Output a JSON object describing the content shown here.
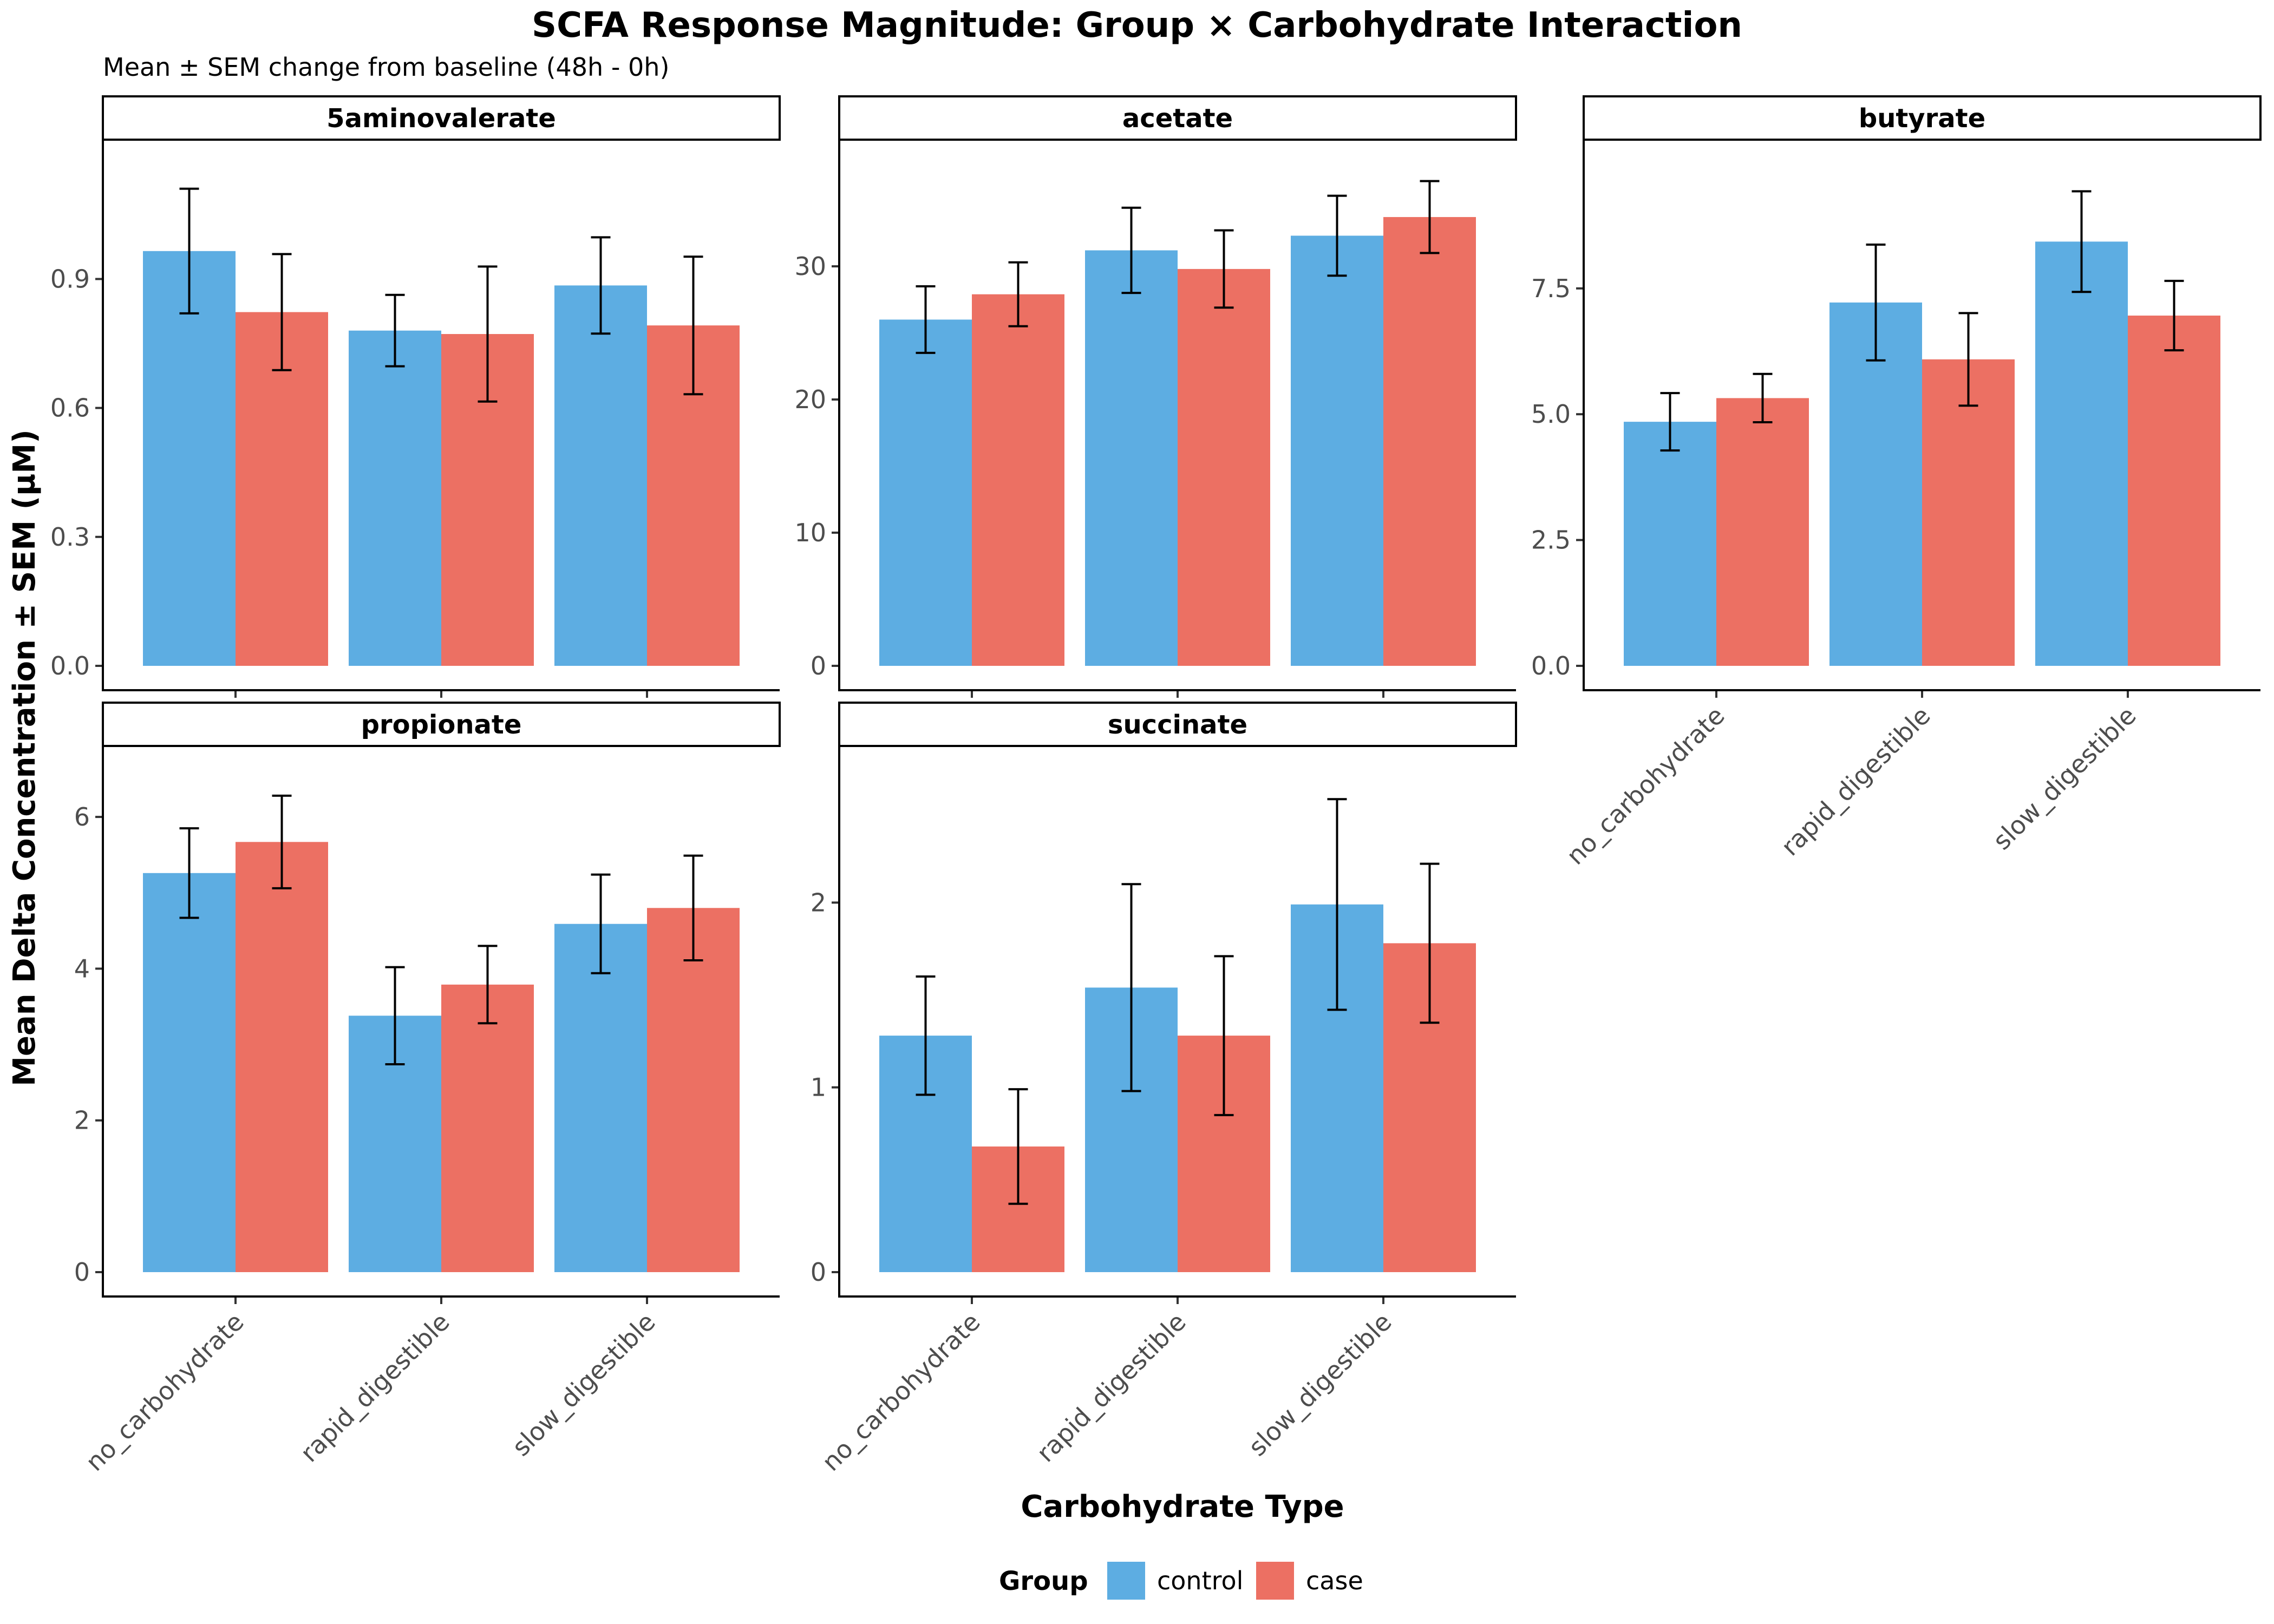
{
  "chart_data": {
    "type": "bar",
    "title": "SCFA Response Magnitude: Group × Carbohydrate Interaction",
    "subtitle": "Mean ± SEM change from baseline (48h - 0h)",
    "xlabel": "Carbohydrate Type",
    "ylabel": "Mean Delta Concentration ± SEM (µM)",
    "categories": [
      "no_carbohydrate",
      "rapid_digestible",
      "slow_digestible"
    ],
    "legend": {
      "title": "Group",
      "position": "bottom",
      "entries": [
        {
          "name": "control",
          "color": "#5dade2"
        },
        {
          "name": "case",
          "color": "#ec7063"
        }
      ]
    },
    "grid": false,
    "panels": [
      {
        "name": "5aminovalerate",
        "ylim": [
          0,
          1.165
        ],
        "yticks": [
          {
            "value": 0,
            "label": "0.0"
          },
          {
            "value": 0.3,
            "label": "0.3"
          },
          {
            "value": 0.6,
            "label": "0.6"
          },
          {
            "value": 0.9,
            "label": "0.9"
          }
        ],
        "series": [
          {
            "name": "control",
            "values": [
              0.965,
              0.78,
              0.885
            ],
            "sem": [
              0.145,
              0.083,
              0.112
            ]
          },
          {
            "name": "case",
            "values": [
              0.823,
              0.772,
              0.792
            ],
            "sem": [
              0.135,
              0.157,
              0.16
            ]
          }
        ]
      },
      {
        "name": "acetate",
        "ylim": [
          0,
          37.6
        ],
        "yticks": [
          {
            "value": 0,
            "label": "0"
          },
          {
            "value": 10,
            "label": "10"
          },
          {
            "value": 20,
            "label": "20"
          },
          {
            "value": 30,
            "label": "30"
          }
        ],
        "series": [
          {
            "name": "control",
            "values": [
              26.0,
              31.2,
              32.3
            ],
            "sem": [
              2.5,
              3.2,
              3.0
            ]
          },
          {
            "name": "case",
            "values": [
              27.9,
              29.8,
              33.7
            ],
            "sem": [
              2.4,
              2.9,
              2.7
            ]
          }
        ]
      },
      {
        "name": "butyrate",
        "ylim": [
          0,
          9.95
        ],
        "yticks": [
          {
            "value": 0,
            "label": "0.0"
          },
          {
            "value": 2.5,
            "label": "2.5"
          },
          {
            "value": 5,
            "label": "5.0"
          },
          {
            "value": 7.5,
            "label": "7.5"
          }
        ],
        "series": [
          {
            "name": "control",
            "values": [
              4.85,
              7.22,
              8.43
            ],
            "sem": [
              0.57,
              1.15,
              1.0
            ]
          },
          {
            "name": "case",
            "values": [
              5.32,
              6.09,
              6.96
            ],
            "sem": [
              0.48,
              0.92,
              0.69
            ]
          }
        ]
      },
      {
        "name": "propionate",
        "ylim": [
          0,
          6.6
        ],
        "yticks": [
          {
            "value": 0,
            "label": "0"
          },
          {
            "value": 2,
            "label": "2"
          },
          {
            "value": 4,
            "label": "4"
          },
          {
            "value": 6,
            "label": "6"
          }
        ],
        "series": [
          {
            "name": "control",
            "values": [
              5.26,
              3.38,
              4.59
            ],
            "sem": [
              0.59,
              0.64,
              0.65
            ]
          },
          {
            "name": "case",
            "values": [
              5.67,
              3.79,
              4.8
            ],
            "sem": [
              0.61,
              0.51,
              0.69
            ]
          }
        ]
      },
      {
        "name": "succinate",
        "ylim": [
          0,
          2.71
        ],
        "yticks": [
          {
            "value": 0,
            "label": "0"
          },
          {
            "value": 1,
            "label": "1"
          },
          {
            "value": 2,
            "label": "2"
          }
        ],
        "series": [
          {
            "name": "control",
            "values": [
              1.28,
              1.54,
              1.99
            ],
            "sem": [
              0.32,
              0.56,
              0.57
            ]
          },
          {
            "name": "case",
            "values": [
              0.68,
              1.28,
              1.78
            ],
            "sem": [
              0.31,
              0.43,
              0.43
            ]
          }
        ]
      }
    ]
  }
}
